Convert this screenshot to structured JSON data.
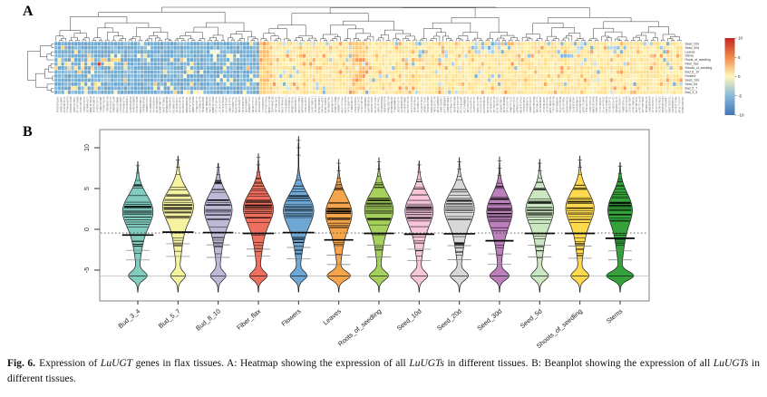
{
  "panelA": {
    "label": "A"
  },
  "panelB": {
    "label": "B"
  },
  "caption": {
    "tag": "Fig. 6.",
    "segments": [
      {
        "text": "Expression of ",
        "italic": false
      },
      {
        "text": "LuUGT",
        "italic": true
      },
      {
        "text": " genes in flax tissues. A: Heatmap showing the expression of all ",
        "italic": false
      },
      {
        "text": "LuUGTs",
        "italic": true
      },
      {
        "text": " in different tissues. B: Beanplot showing the expression of all ",
        "italic": false
      },
      {
        "text": "LuUGTs",
        "italic": true
      },
      {
        "text": " in different tissues.",
        "italic": false
      }
    ]
  },
  "chart_data": [
    {
      "id": "tissue-heatmap",
      "type": "heatmap",
      "title": "",
      "rows": [
        "Seed_20d",
        "Seed_30d",
        "Leaves",
        "Stems",
        "Roots_of_seedling",
        "Fiber_flax",
        "Shoots_of_seedling",
        "Bud_8_10",
        "Flowers",
        "Seed_10d",
        "Seed_5d",
        "Bud_5_7",
        "Bud_3_4"
      ],
      "n_cols": 190,
      "value_range": [
        -10,
        10
      ],
      "colorbar_ticks": [
        10,
        5,
        0,
        -5,
        -10
      ],
      "colorbar_colors": [
        "#c32727",
        "#f08a4b",
        "#fdf7bb",
        "#88b8d8",
        "#4575b4"
      ],
      "colormap_anchors": [
        [
          -10,
          [
            69,
            117,
            180
          ]
        ],
        [
          -5,
          [
            116,
            173,
            209
          ]
        ],
        [
          -2,
          [
            224,
            243,
            248
          ]
        ],
        [
          0,
          [
            253,
            248,
            192
          ]
        ],
        [
          2.5,
          [
            254,
            224,
            144
          ]
        ],
        [
          5,
          [
            253,
            174,
            97
          ]
        ],
        [
          7.5,
          [
            244,
            109,
            67
          ]
        ],
        [
          10,
          [
            215,
            48,
            39
          ]
        ]
      ],
      "pattern": {
        "left_cluster_cols": 62,
        "left_baseline": -5,
        "right_baseline": 1.7,
        "hot_rows_left": [
          4,
          5,
          6
        ],
        "hot_cell": {
          "row": 5,
          "col": 13,
          "value": 9.6
        },
        "warm_col_bands": [
          [
            62,
            65
          ],
          [
            90,
            93
          ]
        ],
        "cool_patches_right": [
          {
            "rows": [
              0,
              2
            ],
            "cols": [
              126,
              137
            ],
            "p": 0.45
          },
          {
            "rows": [
              0,
              3
            ],
            "cols": [
              152,
              160
            ],
            "p": 0.3
          },
          {
            "rows": [
              1,
              2
            ],
            "cols": [
              166,
              172
            ],
            "p": 0.35
          },
          {
            "rows": [
              0,
              1
            ],
            "cols": [
              178,
              186
            ],
            "p": 0.3
          }
        ]
      }
    },
    {
      "id": "tissue-beanplot",
      "type": "violin",
      "title": "",
      "xlabel": "",
      "ylabel": "",
      "ylim": [
        -8.8,
        12.2
      ],
      "yticks": [
        10,
        5,
        0,
        -5
      ],
      "overall_mean_line": -0.45,
      "zero_expression_line": -5.7,
      "categories": [
        "Bud_3_4",
        "Bud_5_7",
        "Bud_8_10",
        "Fiber_flax",
        "Flowers",
        "Leaves",
        "Roots_of_seedling",
        "Seed_10d",
        "Seed_20d",
        "Seed_30d",
        "Seed_5d",
        "Shoots_of_seedling",
        "Stems"
      ],
      "series": [
        {
          "label": "Bud_3_4",
          "color": "#82CBBF",
          "mean": -0.7,
          "top": 8.3,
          "bodyC": 2.4,
          "bodyAmp": 1.0,
          "lobeAmp": 0.62,
          "halfW": 15.0
        },
        {
          "label": "Bud_5_7",
          "color": "#F5F2A2",
          "mean": -0.35,
          "top": 9.0,
          "bodyC": 3.0,
          "bodyAmp": 1.05,
          "lobeAmp": 0.48,
          "halfW": 15.0
        },
        {
          "label": "Bud_8_10",
          "color": "#BDB9D7",
          "mean": -0.4,
          "top": 8.1,
          "bodyC": 2.6,
          "bodyAmp": 0.95,
          "lobeAmp": 0.52,
          "halfW": 14.5
        },
        {
          "label": "Fiber_flax",
          "color": "#EF6F5E",
          "mean": -0.5,
          "top": 9.3,
          "bodyC": 2.7,
          "bodyAmp": 1.0,
          "lobeAmp": 0.58,
          "halfW": 15.0
        },
        {
          "label": "Flowers",
          "color": "#6FA7D4",
          "mean": -0.4,
          "top": 11.4,
          "bodyC": 2.5,
          "bodyAmp": 1.0,
          "lobeAmp": 0.55,
          "halfW": 15.0
        },
        {
          "label": "Leaves",
          "color": "#F4A44B",
          "mean": -1.3,
          "top": 8.6,
          "bodyC": 2.2,
          "bodyAmp": 0.9,
          "lobeAmp": 0.85,
          "halfW": 14.0
        },
        {
          "label": "Roots_of_seedling",
          "color": "#A6D05C",
          "mean": -0.5,
          "top": 8.8,
          "bodyC": 2.6,
          "bodyAmp": 0.98,
          "lobeAmp": 0.66,
          "halfW": 14.5
        },
        {
          "label": "Seed_10d",
          "color": "#F7C6DB",
          "mean": -0.6,
          "top": 8.4,
          "bodyC": 2.5,
          "bodyAmp": 0.95,
          "lobeAmp": 0.58,
          "halfW": 14.5
        },
        {
          "label": "Seed_20d",
          "color": "#D8D8D8",
          "mean": -0.55,
          "top": 8.8,
          "bodyC": 2.7,
          "bodyAmp": 1.0,
          "lobeAmp": 0.6,
          "halfW": 15.0
        },
        {
          "label": "Seed_30d",
          "color": "#BB7FBC",
          "mean": -1.4,
          "top": 8.9,
          "bodyC": 2.4,
          "bodyAmp": 0.92,
          "lobeAmp": 0.72,
          "halfW": 13.5
        },
        {
          "label": "Seed_5d",
          "color": "#CBE7C1",
          "mean": -0.5,
          "top": 8.6,
          "bodyC": 2.6,
          "bodyAmp": 0.95,
          "lobeAmp": 0.6,
          "halfW": 14.5
        },
        {
          "label": "Shoots_of_seedling",
          "color": "#FFDA4F",
          "mean": -0.5,
          "top": 9.0,
          "bodyC": 2.8,
          "bodyAmp": 0.98,
          "lobeAmp": 0.62,
          "halfW": 14.5
        },
        {
          "label": "Stems",
          "color": "#35A13B",
          "mean": -1.1,
          "top": 8.2,
          "bodyC": 2.6,
          "bodyAmp": 0.85,
          "lobeAmp": 1.0,
          "halfW": 14.0
        }
      ],
      "legend": "none",
      "grid": "off"
    }
  ]
}
